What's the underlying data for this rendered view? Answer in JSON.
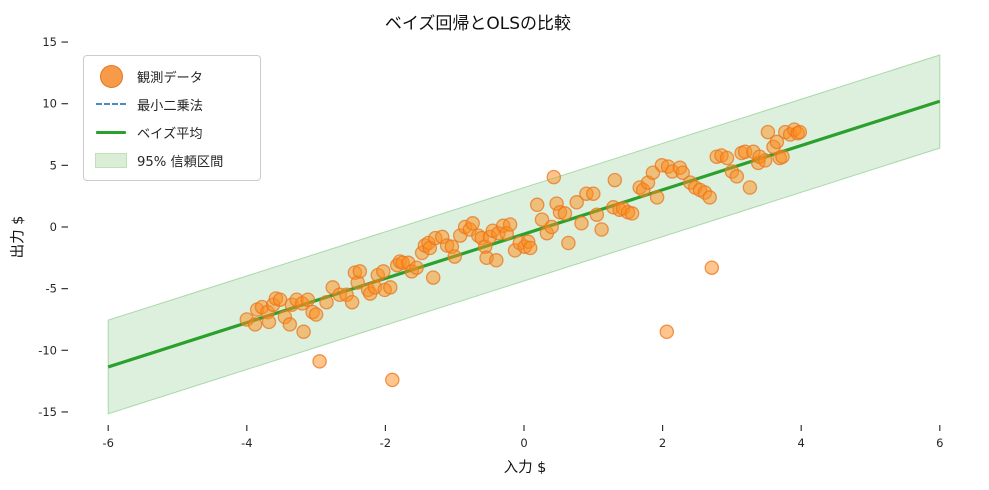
{
  "figure": {
    "title": "ベイズ回帰とOLSの比較",
    "xlabel": "入力 $",
    "ylabel": "出力 $"
  },
  "legend": {
    "position": "upper left",
    "items": [
      {
        "label": "観測データ",
        "icon": "scatter-marker",
        "color": "#f79b4b",
        "edge": "#e6761e"
      },
      {
        "label": "最小二乗法",
        "icon": "dashed-line",
        "color": "#4a8bc4",
        "edge": "#4a8bc4"
      },
      {
        "label": "ベイズ平均",
        "icon": "solid-line",
        "color": "#2ca02c",
        "edge": "#2ca02c"
      },
      {
        "label": "95% 信頼区間",
        "icon": "band-patch",
        "color": "#d9eed5",
        "edge": "#bfe0ba"
      }
    ]
  },
  "chart_data": {
    "type": "scatter",
    "title": "ベイズ回帰とOLSの比較",
    "xlabel": "入力 $",
    "ylabel": "出力 $",
    "xticks": [
      -6,
      -4,
      -2,
      0,
      2,
      4,
      6
    ],
    "yticks": [
      -15,
      -10,
      -5,
      0,
      5,
      10,
      15
    ],
    "xlim": [
      -6.3,
      6.3
    ],
    "ylim": [
      -16.2,
      16.1
    ],
    "grid": false,
    "legend_position": "upper left",
    "series": [
      {
        "name": "観測データ",
        "type": "scatter",
        "color": "#ff8c1a",
        "edge_color": "#e8761e",
        "alpha": 0.5,
        "points": [
          [
            -4.0,
            -7.5
          ],
          [
            -3.88,
            -7.9
          ],
          [
            -3.85,
            -6.7
          ],
          [
            -3.78,
            -6.5
          ],
          [
            -3.7,
            -6.9
          ],
          [
            -3.68,
            -7.7
          ],
          [
            -3.62,
            -6.3
          ],
          [
            -3.58,
            -5.8
          ],
          [
            -3.52,
            -5.9
          ],
          [
            -3.45,
            -7.3
          ],
          [
            -3.38,
            -7.9
          ],
          [
            -3.35,
            -6.3
          ],
          [
            -3.28,
            -5.9
          ],
          [
            -3.2,
            -6.2
          ],
          [
            -3.18,
            -8.5
          ],
          [
            -3.12,
            -5.9
          ],
          [
            -3.05,
            -6.9
          ],
          [
            -3.0,
            -7.1
          ],
          [
            -2.95,
            -10.9
          ],
          [
            -2.85,
            -6.1
          ],
          [
            -2.76,
            -4.9
          ],
          [
            -2.66,
            -5.5
          ],
          [
            -2.56,
            -5.5
          ],
          [
            -2.48,
            -6.1
          ],
          [
            -2.44,
            -3.7
          ],
          [
            -2.4,
            -4.5
          ],
          [
            -2.37,
            -3.6
          ],
          [
            -2.25,
            -5.1
          ],
          [
            -2.22,
            -5.4
          ],
          [
            -2.15,
            -4.9
          ],
          [
            -2.11,
            -3.9
          ],
          [
            -2.03,
            -3.6
          ],
          [
            -2.01,
            -5.1
          ],
          [
            -1.93,
            -4.9
          ],
          [
            -1.9,
            -12.4
          ],
          [
            -1.83,
            -3.1
          ],
          [
            -1.79,
            -2.8
          ],
          [
            -1.75,
            -2.9
          ],
          [
            -1.67,
            -2.9
          ],
          [
            -1.62,
            -3.6
          ],
          [
            -1.55,
            -3.3
          ],
          [
            -1.47,
            -2.1
          ],
          [
            -1.43,
            -1.5
          ],
          [
            -1.38,
            -1.3
          ],
          [
            -1.36,
            -1.7
          ],
          [
            -1.31,
            -4.1
          ],
          [
            -1.28,
            -0.9
          ],
          [
            -1.18,
            -0.8
          ],
          [
            -1.11,
            -1.5
          ],
          [
            -1.04,
            -1.6
          ],
          [
            -1.0,
            -2.4
          ],
          [
            -0.92,
            -0.7
          ],
          [
            -0.85,
            0.0
          ],
          [
            -0.78,
            -0.2
          ],
          [
            -0.74,
            0.3
          ],
          [
            -0.66,
            -0.7
          ],
          [
            -0.61,
            -0.9
          ],
          [
            -0.56,
            -1.6
          ],
          [
            -0.54,
            -2.5
          ],
          [
            -0.49,
            -0.8
          ],
          [
            -0.45,
            -0.3
          ],
          [
            -0.4,
            -2.7
          ],
          [
            -0.37,
            -0.5
          ],
          [
            -0.3,
            0.1
          ],
          [
            -0.25,
            -0.5
          ],
          [
            -0.2,
            0.2
          ],
          [
            -0.13,
            -1.9
          ],
          [
            -0.06,
            -1.3
          ],
          [
            0.01,
            -1.6
          ],
          [
            0.06,
            -1.2
          ],
          [
            0.09,
            -1.7
          ],
          [
            0.19,
            1.8
          ],
          [
            0.26,
            0.6
          ],
          [
            0.33,
            -0.5
          ],
          [
            0.4,
            0.0
          ],
          [
            0.43,
            4.05
          ],
          [
            0.47,
            1.9
          ],
          [
            0.52,
            1.2
          ],
          [
            0.59,
            1.1
          ],
          [
            0.64,
            -1.3
          ],
          [
            0.76,
            2.0
          ],
          [
            0.83,
            0.3
          ],
          [
            0.9,
            2.7
          ],
          [
            1.0,
            2.7
          ],
          [
            1.05,
            1.0
          ],
          [
            1.12,
            -0.2
          ],
          [
            1.29,
            1.6
          ],
          [
            1.31,
            3.8
          ],
          [
            1.38,
            1.4
          ],
          [
            1.43,
            1.5
          ],
          [
            1.5,
            1.2
          ],
          [
            1.56,
            1.1
          ],
          [
            1.67,
            3.2
          ],
          [
            1.72,
            3.0
          ],
          [
            1.79,
            3.6
          ],
          [
            1.86,
            4.4
          ],
          [
            1.92,
            2.4
          ],
          [
            1.99,
            5.0
          ],
          [
            2.06,
            -8.5
          ],
          [
            2.08,
            4.9
          ],
          [
            2.14,
            4.5
          ],
          [
            2.25,
            4.8
          ],
          [
            2.29,
            4.4
          ],
          [
            2.4,
            3.6
          ],
          [
            2.47,
            3.2
          ],
          [
            2.54,
            3.0
          ],
          [
            2.61,
            2.8
          ],
          [
            2.68,
            2.4
          ],
          [
            2.71,
            -3.3
          ],
          [
            2.78,
            5.7
          ],
          [
            2.85,
            5.8
          ],
          [
            2.93,
            5.6
          ],
          [
            3.0,
            4.5
          ],
          [
            3.07,
            4.1
          ],
          [
            3.14,
            6.0
          ],
          [
            3.19,
            6.1
          ],
          [
            3.26,
            3.2
          ],
          [
            3.31,
            6.1
          ],
          [
            3.38,
            5.2
          ],
          [
            3.4,
            5.7
          ],
          [
            3.48,
            5.4
          ],
          [
            3.52,
            7.7
          ],
          [
            3.6,
            6.5
          ],
          [
            3.65,
            6.9
          ],
          [
            3.69,
            5.6
          ],
          [
            3.73,
            5.7
          ],
          [
            3.77,
            7.7
          ],
          [
            3.84,
            7.5
          ],
          [
            3.9,
            7.9
          ],
          [
            3.95,
            7.6
          ],
          [
            3.98,
            7.7
          ]
        ]
      },
      {
        "name": "最小二乗法",
        "type": "line",
        "linestyle": "dashed",
        "color": "#4a8bc4",
        "x": [
          -6,
          6
        ],
        "y": [
          -11.35,
          10.2
        ]
      },
      {
        "name": "ベイズ平均",
        "type": "line",
        "linestyle": "solid",
        "color": "#2ca02c",
        "x": [
          -6,
          6
        ],
        "y": [
          -11.35,
          10.2
        ]
      },
      {
        "name": "95% 信頼区間",
        "type": "band",
        "color": "#2ca02c",
        "alpha": 0.16,
        "x": [
          -6,
          6
        ],
        "upper": [
          -7.55,
          13.95
        ],
        "lower": [
          -15.15,
          6.4
        ]
      }
    ]
  }
}
